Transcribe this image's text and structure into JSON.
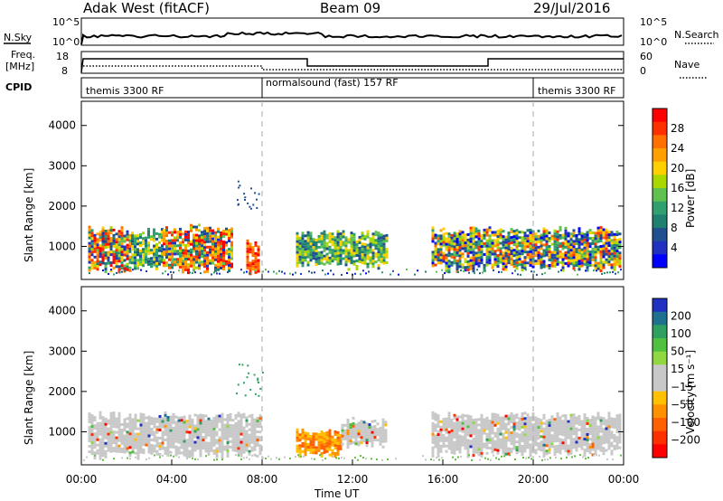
{
  "header": {
    "station": "Adak West (fitACF)",
    "beam": "Beam 09",
    "date": "29/Jul/2016"
  },
  "strips": {
    "nsky_label": "N.Sky",
    "nsearch_label": "N.Search",
    "noise_ticks": [
      "10^5",
      "10^0"
    ],
    "freq_label_top": "Freq.",
    "freq_label_unit": "[MHz]",
    "freq_ticks": [
      "18",
      "8"
    ],
    "nave_ticks": [
      "60",
      "0"
    ],
    "nave_label": "Nave",
    "cpid_label": "CPID",
    "cpid_segments": [
      {
        "label": "themis 3300 RF",
        "start_h": 0,
        "end_h": 8
      },
      {
        "label": "normalsound (fast) 157 RF",
        "start_h": 8,
        "end_h": 20
      },
      {
        "label": "themis 3300 RF",
        "start_h": 20,
        "end_h": 24
      }
    ]
  },
  "colorbars": {
    "power": {
      "label": "Power [dB]",
      "ticks": [
        "28",
        "24",
        "20",
        "16",
        "12",
        "8",
        "4"
      ],
      "colors": [
        "#ff0000",
        "#ff3000",
        "#ff7000",
        "#ffa000",
        "#ffd000",
        "#a8d800",
        "#60c050",
        "#30a070",
        "#208070",
        "#205090",
        "#2030c0",
        "#0000ff"
      ]
    },
    "velocity": {
      "label": "Velocity [m s⁻¹]",
      "ticks": [
        "200",
        "100",
        "50",
        "15",
        "−15",
        "−50",
        "−100",
        "−200"
      ],
      "colors": [
        "#2030c0",
        "#207090",
        "#30a060",
        "#50c040",
        "#90d840",
        "#c8c8c8",
        "#c8c8c8",
        "#ffc000",
        "#ff9000",
        "#ff6000",
        "#ff3000",
        "#ff0000"
      ]
    }
  },
  "chart_data": [
    {
      "type": "heatmap",
      "name": "power",
      "ylabel": "Slant Range [km]",
      "xlabel": "Time UT",
      "xlim_hours": [
        0,
        24
      ],
      "ylim_km": [
        180,
        4600
      ],
      "yticks": [
        1000,
        2000,
        3000,
        4000
      ],
      "xtick_labels": [
        "00:00",
        "04:00",
        "08:00",
        "12:00",
        "16:00",
        "20:00",
        "00:00"
      ],
      "blobs": [
        {
          "t0": 0.3,
          "t1": 2.2,
          "r0": 450,
          "r1": 1400,
          "level": "mixed-high"
        },
        {
          "t0": 2.2,
          "t1": 3.6,
          "r0": 500,
          "r1": 1350,
          "level": "mid"
        },
        {
          "t0": 3.6,
          "t1": 6.7,
          "r0": 450,
          "r1": 1450,
          "level": "mixed-high"
        },
        {
          "t0": 7.3,
          "t1": 7.9,
          "r0": 350,
          "r1": 1100,
          "level": "high"
        },
        {
          "t0": 9.5,
          "t1": 13.5,
          "r0": 550,
          "r1": 1300,
          "level": "mid"
        },
        {
          "t0": 15.5,
          "t1": 23.9,
          "r0": 500,
          "r1": 1400,
          "level": "mixed-mid"
        }
      ]
    },
    {
      "type": "heatmap",
      "name": "velocity",
      "ylabel": "Slant Range [km]",
      "xlabel": "Time UT",
      "xlim_hours": [
        0,
        24
      ],
      "ylim_km": [
        180,
        4600
      ],
      "yticks": [
        1000,
        2000,
        3000,
        4000
      ],
      "xtick_labels": [
        "00:00",
        "04:00",
        "08:00",
        "12:00",
        "16:00",
        "20:00",
        "00:00"
      ],
      "blobs": [
        {
          "t0": 0.3,
          "t1": 7.9,
          "r0": 450,
          "r1": 1400,
          "level": "near-zero"
        },
        {
          "t0": 9.5,
          "t1": 11.5,
          "r0": 450,
          "r1": 1000,
          "level": "negative"
        },
        {
          "t0": 11.5,
          "t1": 13.5,
          "r0": 700,
          "r1": 1300,
          "level": "near-zero"
        },
        {
          "t0": 15.5,
          "t1": 23.9,
          "r0": 500,
          "r1": 1400,
          "level": "near-zero"
        }
      ]
    }
  ],
  "time_axis_label": "Time UT"
}
